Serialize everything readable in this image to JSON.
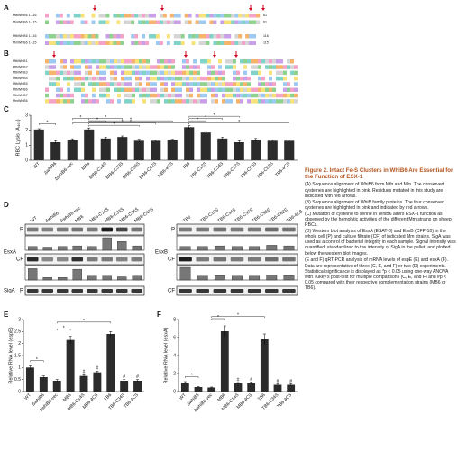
{
  "panel_a": {
    "label": "A",
    "rows": [
      {
        "name": "MtbWhiB6 1-116",
        "end": "61"
      },
      {
        "name": "MmWhiB6 1-115",
        "end": "61"
      },
      {
        "name": "MtbWhiB6 1-116",
        "end": "116"
      },
      {
        "name": "MmWhiB6 1-115",
        "end": "115"
      }
    ]
  },
  "panel_b": {
    "label": "B",
    "rows": [
      "MtbWhiB1",
      "MtbWhiB2",
      "MtbWhiB3",
      "MtbWhiB4",
      "MtbWhiB5",
      "MtbWhiB6",
      "MtbWhiB7",
      "MmWhiB6"
    ]
  },
  "panel_d": {
    "label": "D",
    "row_p": "P",
    "row_cf": "CF",
    "loading": "SigA",
    "groups": [
      {
        "protein": "EsxA",
        "loading_fraction": "P",
        "lanes": [
          "WT",
          "ΔwhiB6",
          "ΔwhiB6-vec",
          "MB6",
          "MB6-C14S",
          "MB6-C33S",
          "MB6-C36S",
          "MB6-C42S"
        ],
        "quant_p": [
          0.3,
          0.25,
          0.3,
          0.35,
          0.3,
          1.0,
          0.7,
          0.35
        ],
        "quant_cf": [
          0.9,
          0.2,
          0.2,
          0.85,
          0.3,
          0.3,
          0.25,
          0.3
        ]
      },
      {
        "protein": "EsxB",
        "loading_fraction": "CF",
        "lanes": [
          "TB6",
          "TB6-C12S",
          "TB6-C34S",
          "TB6-C37S",
          "TB6-C56S",
          "TB6-C62S",
          "TB6-4CS"
        ],
        "quant_p": [
          0.3,
          0.3,
          0.35,
          0.3,
          0.3,
          0.4,
          0.35
        ],
        "quant_cf": [
          1.0,
          0.3,
          0.35,
          0.3,
          0.3,
          0.4,
          0.35
        ]
      }
    ]
  },
  "chart_data": [
    {
      "type": "bar",
      "panel": "C",
      "ylabel": "RBC Lysis (A₄₀₅)",
      "color": "#2b2b2b",
      "categories": [
        "WT",
        "ΔwhiB6",
        "ΔwhiB6-vec",
        "MB6",
        "MB6-C14S",
        "MB6-C33S",
        "MB6-C36S",
        "MB6-C42S",
        "MB6-4CS",
        "TB6",
        "TB6-C12S",
        "TB6-C34S",
        "TB6-C37S",
        "TB6-C56S",
        "TB6-C62S",
        "TB6-4CS"
      ],
      "values": [
        2.05,
        1.2,
        1.35,
        2.05,
        1.45,
        1.55,
        1.3,
        1.3,
        1.35,
        2.2,
        1.85,
        1.45,
        1.2,
        1.35,
        1.3,
        1.3
      ],
      "errors": [
        0.05,
        0.1,
        0.08,
        0.1,
        0.08,
        0.07,
        0.1,
        0.05,
        0.05,
        0.1,
        0.08,
        0.08,
        0.1,
        0.1,
        0.05,
        0.05
      ],
      "ylim": [
        0,
        3
      ],
      "yticks": [
        0,
        1,
        2,
        3
      ],
      "brackets": [
        {
          "from": "WT",
          "to": "ΔwhiB6",
          "text": "*"
        },
        {
          "from": "MB6",
          "to": "MB6-C14S",
          "text": "*"
        },
        {
          "from": "MB6",
          "to": "MB6-C33S",
          "text": "*"
        },
        {
          "from": "MB6",
          "to": "MB6-C36S",
          "text": "*"
        },
        {
          "from": "MB6",
          "to": "MB6-C42S",
          "text": "*"
        },
        {
          "from": "MB6",
          "to": "MB6-4CS",
          "text": "*"
        },
        {
          "from": "ΔwhiB6-vec",
          "to": "MB6",
          "text": "*"
        },
        {
          "from": "ΔwhiB6-vec",
          "to": "TB6",
          "text": "*"
        },
        {
          "from": "TB6",
          "to": "TB6-C12S",
          "text": "*"
        },
        {
          "from": "TB6",
          "to": "TB6-C34S",
          "text": "*"
        },
        {
          "from": "TB6",
          "to": "TB6-C37S",
          "text": "*"
        },
        {
          "from": "TB6",
          "to": "TB6-4CS",
          "text": "*"
        }
      ],
      "marks": []
    },
    {
      "type": "bar",
      "panel": "E",
      "ylabel": "Relative RNA level (espE)",
      "color": "#2b2b2b",
      "categories": [
        "WT",
        "ΔwhiB6",
        "ΔwhiB6-vec",
        "MB6",
        "MB6-C14S",
        "MB6-4CS",
        "TB6",
        "TB6-C34S",
        "TB6-4CS"
      ],
      "values": [
        1.0,
        0.6,
        0.45,
        2.15,
        0.65,
        0.8,
        2.4,
        0.45,
        0.45
      ],
      "errors": [
        0.08,
        0.05,
        0.05,
        0.15,
        0.05,
        0.05,
        0.1,
        0.05,
        0.05
      ],
      "ylim": [
        0,
        3
      ],
      "yticks": [
        0,
        0.5,
        1,
        1.5,
        2,
        2.5,
        3
      ],
      "brackets": [
        {
          "from": "WT",
          "to": "ΔwhiB6",
          "text": "*"
        },
        {
          "from": "ΔwhiB6-vec",
          "to": "MB6",
          "text": "*"
        },
        {
          "from": "ΔwhiB6-vec",
          "to": "TB6",
          "text": "*"
        }
      ],
      "marks": [
        {
          "category": "MB6-C14S",
          "text": "#"
        },
        {
          "category": "MB6-4CS",
          "text": "#"
        },
        {
          "category": "TB6-C34S",
          "text": "#"
        },
        {
          "category": "TB6-4CS",
          "text": "#"
        }
      ]
    },
    {
      "type": "bar",
      "panel": "F",
      "ylabel": "Relative RNA level (esxA)",
      "color": "#2b2b2b",
      "categories": [
        "WT",
        "ΔwhiB6",
        "ΔwhiB6-vec",
        "MB6",
        "MB6-C14S",
        "MB6-4CS",
        "TB6",
        "TB6-C34S",
        "TB6-4CS"
      ],
      "values": [
        1.0,
        0.5,
        0.45,
        6.7,
        0.9,
        0.95,
        5.8,
        0.75,
        0.75
      ],
      "errors": [
        0.1,
        0.05,
        0.05,
        0.6,
        0.1,
        0.1,
        0.6,
        0.1,
        0.1
      ],
      "ylim": [
        0,
        8
      ],
      "yticks": [
        0,
        2,
        4,
        6,
        8
      ],
      "brackets": [
        {
          "from": "WT",
          "to": "ΔwhiB6",
          "text": "*"
        },
        {
          "from": "ΔwhiB6-vec",
          "to": "MB6",
          "text": "*"
        },
        {
          "from": "ΔwhiB6-vec",
          "to": "TB6",
          "text": "*"
        }
      ],
      "marks": [
        {
          "category": "MB6-C14S",
          "text": "#"
        },
        {
          "category": "MB6-4CS",
          "text": "#"
        },
        {
          "category": "TB6-C34S",
          "text": "#"
        },
        {
          "category": "TB6-4CS",
          "text": "#"
        }
      ]
    }
  ],
  "caption": {
    "title": "Figure 2. Intact Fe-S Clusters in WhiB6 Are Essential for the Function of ESX-1",
    "paragraphs": [
      "(A) Sequence alignment of WhiB6 from Mtb and Mm. The conserved cysteines are highlighted in pink. Residues mutated in this study are indicated with red arrows.",
      "(B) Sequence alignment of WhiB family proteins. The four conserved cysteines are highlighted in pink and indicated by red arrows.",
      "(C) Mutation of cysteine to serine in WhiB6 alters ESX-1 function as observed by the hemolytic activities of the different Mm strains on sheep RBCs.",
      "(D) Western blot analysis of EsxA (ESAT-6) and EsxB (CFP-10) in the whole cell (P) and culture filtrate (CF) of indicated Mm strains. SigA was used as a control of bacterial integrity in each sample. Signal intensity was quantified, standardized to the intensity of SigA in the pellet, and plotted below the western blot images.",
      "(E and F) qRT-PCR analysis of mRNA levels of espE (E) and esxA (F).",
      "Data are representative of three (C, E, and F) or two (D) experiments. Statistical significance is displayed as *p < 0.05 using one-way ANOVA with Tukey's post-test for multiple comparisons (C, E, and F) and #p < 0.05 compared with their respective complementation strains (MB6 or TB6)."
    ]
  }
}
